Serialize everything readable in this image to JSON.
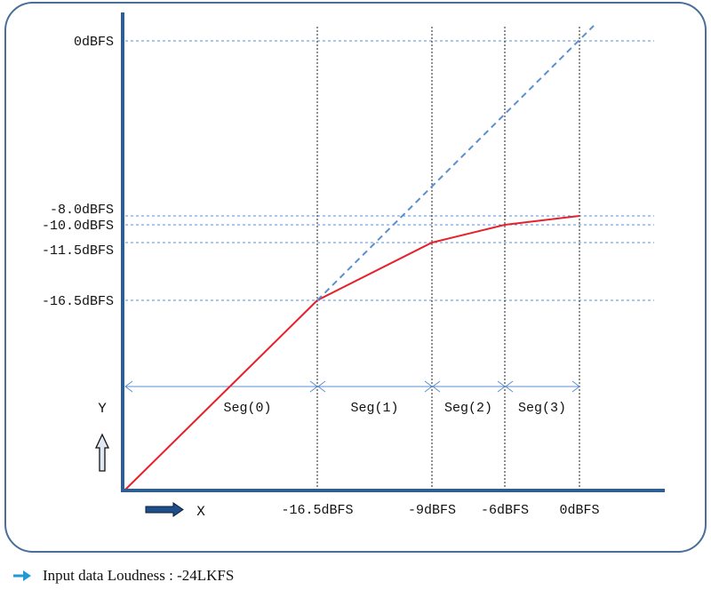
{
  "chart_data": {
    "type": "line",
    "title": "",
    "xlabel": "X",
    "ylabel": "Y",
    "x_ticks": [
      "-16.5dBFS",
      "-9dBFS",
      "-6dBFS",
      "0dBFS"
    ],
    "y_ticks": [
      "0dBFS",
      "-8.0dBFS",
      "-10.0dBFS",
      "-11.5dBFS",
      "-16.5dBFS"
    ],
    "segments": [
      "Seg(0)",
      "Seg(1)",
      "Seg(2)",
      "Seg(3)"
    ],
    "series": [
      {
        "style": "solid",
        "color": "#e8202a",
        "x": [
          -24,
          -16.5,
          -9,
          -6,
          0
        ],
        "y": [
          -24,
          -16.5,
          -11.5,
          -10.0,
          -8.0
        ]
      },
      {
        "style": "dashed",
        "color": "#5b8fd0",
        "x": [
          -16.5,
          1
        ],
        "y": [
          -16.5,
          1
        ]
      }
    ],
    "colors": {
      "axis": "#2f5f91",
      "grid_h": "#5b8fd0",
      "grid_v": "#222222",
      "segment_arrow": "#5b8fd0",
      "frame": "#4a6e96"
    }
  },
  "footnote": {
    "text": "Input data Loudness : -24LKFS",
    "arrow_color": "#1f9ad6"
  }
}
